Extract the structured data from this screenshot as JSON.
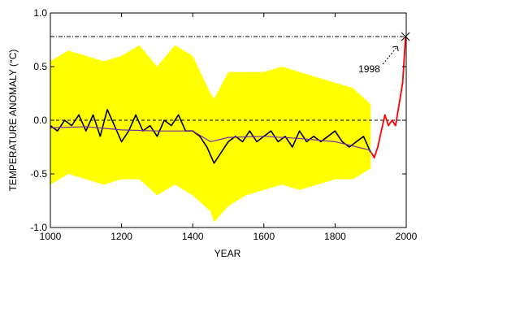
{
  "chart_data": {
    "type": "line",
    "title": "",
    "xlabel": "YEAR",
    "ylabel": "TEMPERATURE ANOMALY (°C)",
    "xlim": [
      1000,
      2000
    ],
    "ylim": [
      -1.0,
      1.0
    ],
    "xticks": [
      1000,
      1200,
      1400,
      1600,
      1800,
      2000
    ],
    "xtick_labels": [
      "1000",
      "1200",
      "1400",
      "1600",
      "1800",
      "2000"
    ],
    "yticks": [
      1.0,
      0.5,
      0.0,
      -0.5,
      -1.0
    ],
    "ytick_labels": [
      "1.0",
      "0.5",
      "0.0",
      "-0.5",
      "-1.0"
    ],
    "grid": false,
    "reference_lines": [
      {
        "y": 0.0,
        "style": "dashed"
      },
      {
        "y": 0.78,
        "style": "dash-dot"
      }
    ],
    "colors": {
      "uncertainty_band": "#ffff00",
      "reconstruction": "#000000",
      "smoothed": "#7a2fa0",
      "instrumental": "#ff0000"
    },
    "series": [
      {
        "role": "uncertainty_band",
        "x": [
          1000,
          1050,
          1100,
          1150,
          1200,
          1250,
          1300,
          1350,
          1400,
          1450,
          1460,
          1500,
          1550,
          1600,
          1650,
          1700,
          1750,
          1800,
          1850,
          1900
        ],
        "upper": [
          0.55,
          0.65,
          0.6,
          0.55,
          0.6,
          0.7,
          0.5,
          0.7,
          0.6,
          0.25,
          0.2,
          0.45,
          0.45,
          0.45,
          0.5,
          0.45,
          0.4,
          0.35,
          0.3,
          0.15
        ],
        "lower": [
          -0.6,
          -0.5,
          -0.55,
          -0.6,
          -0.55,
          -0.55,
          -0.7,
          -0.6,
          -0.7,
          -0.85,
          -0.95,
          -0.8,
          -0.7,
          -0.65,
          -0.6,
          -0.65,
          -0.6,
          -0.55,
          -0.55,
          -0.45
        ]
      },
      {
        "role": "reconstruction",
        "x": [
          1000,
          1020,
          1040,
          1060,
          1080,
          1100,
          1120,
          1140,
          1160,
          1180,
          1200,
          1220,
          1240,
          1260,
          1280,
          1300,
          1320,
          1340,
          1360,
          1380,
          1400,
          1420,
          1440,
          1460,
          1480,
          1500,
          1520,
          1540,
          1560,
          1580,
          1600,
          1620,
          1640,
          1660,
          1680,
          1700,
          1720,
          1740,
          1760,
          1780,
          1800,
          1820,
          1840,
          1860,
          1880,
          1900
        ],
        "y": [
          -0.05,
          -0.1,
          0.0,
          -0.05,
          0.05,
          -0.1,
          0.05,
          -0.15,
          0.1,
          -0.05,
          -0.2,
          -0.1,
          0.05,
          -0.1,
          -0.05,
          -0.15,
          0.0,
          -0.05,
          0.05,
          -0.1,
          -0.1,
          -0.15,
          -0.25,
          -0.4,
          -0.3,
          -0.2,
          -0.15,
          -0.2,
          -0.1,
          -0.2,
          -0.15,
          -0.1,
          -0.2,
          -0.15,
          -0.25,
          -0.1,
          -0.2,
          -0.15,
          -0.2,
          -0.15,
          -0.1,
          -0.2,
          -0.25,
          -0.2,
          -0.15,
          -0.3
        ]
      },
      {
        "role": "smoothed",
        "x": [
          1000,
          1100,
          1200,
          1300,
          1400,
          1450,
          1500,
          1600,
          1700,
          1800,
          1900
        ],
        "y": [
          -0.07,
          -0.06,
          -0.09,
          -0.1,
          -0.1,
          -0.2,
          -0.16,
          -0.15,
          -0.17,
          -0.2,
          -0.28
        ]
      },
      {
        "role": "instrumental",
        "x": [
          1902,
          1910,
          1920,
          1930,
          1940,
          1950,
          1960,
          1970,
          1980,
          1990,
          1998
        ],
        "y": [
          -0.3,
          -0.35,
          -0.25,
          -0.1,
          0.05,
          -0.05,
          0.0,
          -0.05,
          0.15,
          0.35,
          0.78
        ]
      }
    ],
    "annotations": [
      {
        "text": "1998",
        "x": 1998,
        "y": 0.78
      }
    ]
  }
}
